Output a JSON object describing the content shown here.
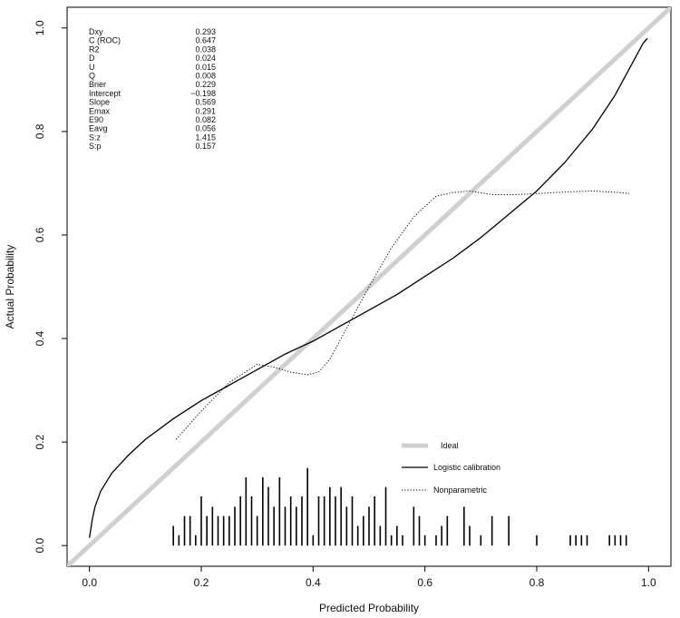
{
  "chart_data": {
    "type": "line",
    "xlabel": "Predicted Probability",
    "ylabel": "Actual Probability",
    "xlim": [
      -0.04,
      1.04
    ],
    "ylim": [
      -0.04,
      1.04
    ],
    "x_ticks": [
      "0.0",
      "0.2",
      "0.4",
      "0.6",
      "0.8",
      "1.0"
    ],
    "y_ticks": [
      "0.0",
      "0.2",
      "0.4",
      "0.6",
      "0.8",
      "1.0"
    ],
    "grid": false,
    "legend_position": "bottom-right",
    "stats": [
      {
        "label": "Dxy",
        "value": "0.293"
      },
      {
        "label": "C (ROC)",
        "value": "0.647"
      },
      {
        "label": "R2",
        "value": "0.038"
      },
      {
        "label": "D",
        "value": "0.024"
      },
      {
        "label": "U",
        "value": "0.015"
      },
      {
        "label": "Q",
        "value": "0.008"
      },
      {
        "label": "Brier",
        "value": "0.229"
      },
      {
        "label": "Intercept",
        "value": "−0.198"
      },
      {
        "label": "Slope",
        "value": "0.569"
      },
      {
        "label": "Emax",
        "value": "0.291"
      },
      {
        "label": "E90",
        "value": "0.082"
      },
      {
        "label": "Eavg",
        "value": "0.056"
      },
      {
        "label": "S:z",
        "value": "1.415"
      },
      {
        "label": "S:p",
        "value": "0.157"
      }
    ],
    "series": [
      {
        "name": "Ideal",
        "style": "thick-gray",
        "color": "#d0d0d0",
        "x": [
          -0.04,
          1.04
        ],
        "y": [
          -0.04,
          1.04
        ]
      },
      {
        "name": "Logistic calibration",
        "style": "solid",
        "color": "#000000",
        "x": [
          0.0,
          0.005,
          0.01,
          0.02,
          0.04,
          0.07,
          0.1,
          0.15,
          0.2,
          0.25,
          0.3,
          0.35,
          0.4,
          0.45,
          0.5,
          0.55,
          0.6,
          0.65,
          0.7,
          0.75,
          0.8,
          0.85,
          0.9,
          0.94,
          0.97,
          0.99,
          0.998
        ],
        "y": [
          0.015,
          0.05,
          0.075,
          0.105,
          0.14,
          0.175,
          0.205,
          0.245,
          0.28,
          0.31,
          0.34,
          0.37,
          0.395,
          0.425,
          0.455,
          0.485,
          0.52,
          0.555,
          0.595,
          0.64,
          0.685,
          0.74,
          0.805,
          0.87,
          0.93,
          0.97,
          0.98
        ]
      },
      {
        "name": "Nonparametric",
        "style": "dotted",
        "color": "#000000",
        "x": [
          0.155,
          0.2,
          0.25,
          0.3,
          0.33,
          0.36,
          0.39,
          0.41,
          0.43,
          0.46,
          0.5,
          0.54,
          0.58,
          0.62,
          0.65,
          0.68,
          0.72,
          0.76,
          0.8,
          0.85,
          0.9,
          0.95,
          0.965
        ],
        "y": [
          0.205,
          0.26,
          0.315,
          0.35,
          0.345,
          0.335,
          0.33,
          0.335,
          0.36,
          0.42,
          0.5,
          0.575,
          0.635,
          0.675,
          0.682,
          0.685,
          0.678,
          0.678,
          0.68,
          0.683,
          0.685,
          0.682,
          0.68
        ]
      }
    ],
    "rug": {
      "x": [
        0.15,
        0.16,
        0.17,
        0.18,
        0.19,
        0.2,
        0.21,
        0.22,
        0.23,
        0.24,
        0.25,
        0.26,
        0.27,
        0.28,
        0.29,
        0.3,
        0.31,
        0.32,
        0.33,
        0.34,
        0.35,
        0.36,
        0.37,
        0.38,
        0.39,
        0.4,
        0.41,
        0.42,
        0.43,
        0.44,
        0.45,
        0.46,
        0.47,
        0.48,
        0.49,
        0.5,
        0.51,
        0.52,
        0.53,
        0.54,
        0.55,
        0.56,
        0.58,
        0.59,
        0.6,
        0.62,
        0.63,
        0.64,
        0.67,
        0.68,
        0.7,
        0.72,
        0.75,
        0.8,
        0.86,
        0.87,
        0.88,
        0.89,
        0.93,
        0.94,
        0.95,
        0.96
      ],
      "h": [
        0.038,
        0.02,
        0.057,
        0.057,
        0.02,
        0.095,
        0.057,
        0.075,
        0.057,
        0.057,
        0.057,
        0.075,
        0.095,
        0.132,
        0.095,
        0.057,
        0.132,
        0.113,
        0.075,
        0.132,
        0.075,
        0.095,
        0.075,
        0.095,
        0.15,
        0.02,
        0.095,
        0.095,
        0.113,
        0.095,
        0.113,
        0.075,
        0.095,
        0.038,
        0.057,
        0.075,
        0.095,
        0.038,
        0.113,
        0.02,
        0.038,
        0.02,
        0.075,
        0.057,
        0.02,
        0.02,
        0.038,
        0.057,
        0.075,
        0.038,
        0.02,
        0.057,
        0.057,
        0.02,
        0.02,
        0.02,
        0.02,
        0.02,
        0.02,
        0.02,
        0.02,
        0.02
      ]
    }
  }
}
